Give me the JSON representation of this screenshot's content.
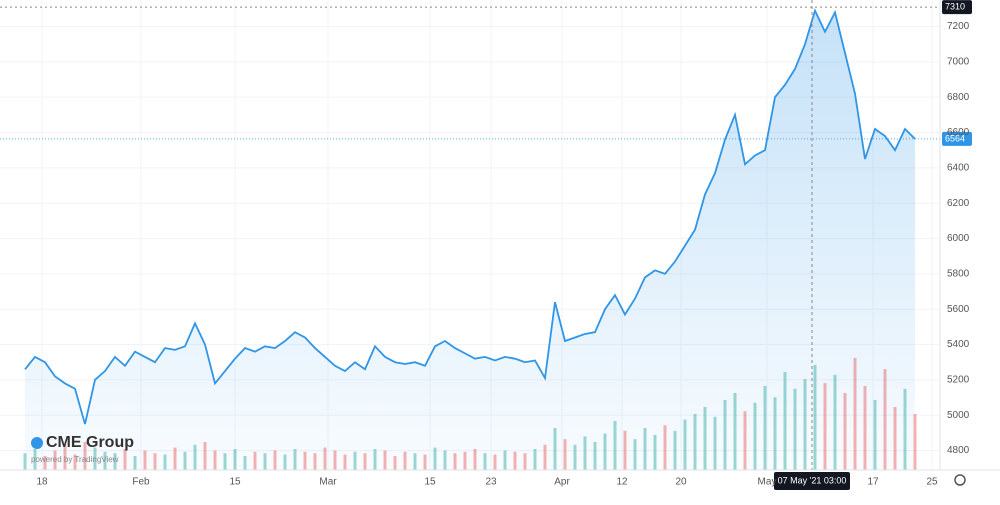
{
  "chart_data": {
    "type": "area",
    "color": "#2f95e6",
    "values": [
      5260,
      5330,
      5300,
      5220,
      5180,
      5150,
      4950,
      5200,
      5250,
      5330,
      5280,
      5360,
      5330,
      5300,
      5380,
      5370,
      5390,
      5520,
      5400,
      5180,
      5250,
      5320,
      5380,
      5360,
      5390,
      5380,
      5420,
      5470,
      5440,
      5380,
      5330,
      5280,
      5250,
      5300,
      5260,
      5390,
      5330,
      5300,
      5290,
      5300,
      5280,
      5390,
      5420,
      5380,
      5350,
      5320,
      5330,
      5310,
      5330,
      5320,
      5300,
      5310,
      5210,
      5640,
      5420,
      5440,
      5460,
      5470,
      5600,
      5680,
      5570,
      5660,
      5780,
      5820,
      5800,
      5870,
      5960,
      6050,
      6250,
      6370,
      6560,
      6700,
      6420,
      6470,
      6500,
      6800,
      6870,
      6960,
      7100,
      7290,
      7170,
      7280,
      7050,
      6820,
      6450,
      6620,
      6580,
      6500,
      6620,
      6564
    ],
    "volume": [
      12,
      15,
      10,
      14,
      18,
      11,
      20,
      16,
      13,
      12,
      15,
      10,
      14,
      12,
      11,
      16,
      13,
      18,
      20,
      14,
      12,
      15,
      10,
      13,
      12,
      14,
      11,
      15,
      13,
      12,
      16,
      14,
      11,
      13,
      12,
      15,
      14,
      10,
      13,
      12,
      11,
      16,
      14,
      12,
      13,
      15,
      12,
      11,
      14,
      13,
      12,
      15,
      18,
      30,
      22,
      18,
      24,
      20,
      26,
      35,
      28,
      22,
      30,
      25,
      32,
      28,
      36,
      40,
      45,
      38,
      50,
      55,
      42,
      48,
      60,
      52,
      70,
      58,
      65,
      75,
      62,
      68,
      55,
      80,
      60,
      50,
      72,
      45,
      58,
      40
    ],
    "volume_lim": [
      0,
      100
    ],
    "xlim": [
      -2.5,
      91.5
    ],
    "ylim": [
      4690,
      7350
    ],
    "yticks": [
      4800,
      5000,
      5200,
      5400,
      5600,
      5800,
      6000,
      6200,
      6400,
      6600,
      6800,
      7000,
      7200
    ],
    "xticks": [
      {
        "value": 1.7,
        "label": "18"
      },
      {
        "value": 11.6,
        "label": "Feb"
      },
      {
        "value": 21,
        "label": "15"
      },
      {
        "value": 30.3,
        "label": "Mar"
      },
      {
        "value": 40.5,
        "label": "15"
      },
      {
        "value": 46.6,
        "label": "23"
      },
      {
        "value": 53.7,
        "label": "Apr"
      },
      {
        "value": 59.7,
        "label": "12"
      },
      {
        "value": 65.6,
        "label": "20"
      },
      {
        "value": 74.2,
        "label": "May"
      },
      {
        "value": 84.8,
        "label": "17"
      },
      {
        "value": 90.7,
        "label": "25"
      }
    ],
    "high_label": 7310,
    "last_price": 6564,
    "crosshair": {
      "value": 78.7,
      "label": "07 May '21 03:00"
    },
    "logo": "CME Group",
    "powered_by": "powered by TradingView",
    "grid": true
  }
}
